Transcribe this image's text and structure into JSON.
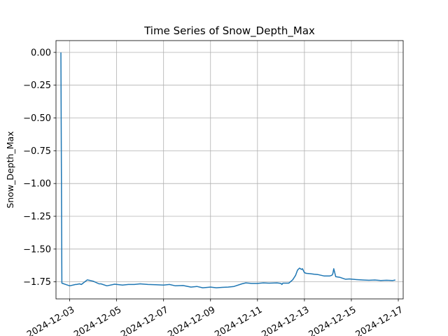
{
  "chart_data": {
    "type": "line",
    "title": "Time Series of Snow_Depth_Max",
    "xlabel": "",
    "ylabel": "Snow_Depth_Max",
    "grid": true,
    "legend": "none",
    "line_color": "#1f77b4",
    "xlim": [
      "2024-12-02T10:00",
      "2024-12-17T05:00"
    ],
    "ylim": [
      -1.88,
      0.09
    ],
    "x_ticks": [
      "2024-12-03",
      "2024-12-05",
      "2024-12-07",
      "2024-12-09",
      "2024-12-11",
      "2024-12-13",
      "2024-12-15",
      "2024-12-17"
    ],
    "y_ticks": [
      "0.00",
      "−0.25",
      "−0.50",
      "−0.75",
      "−1.00",
      "−1.25",
      "−1.50",
      "−1.75"
    ],
    "y_tick_values": [
      0,
      -0.25,
      -0.5,
      -0.75,
      -1.0,
      -1.25,
      -1.5,
      -1.75
    ],
    "series": [
      {
        "x": [
          "2024-12-02T15:00",
          "2024-12-02T16:00",
          "2024-12-02T20:00",
          "2024-12-03T00:00",
          "2024-12-03T06:00",
          "2024-12-03T07:00",
          "2024-12-03T10:00",
          "2024-12-03T12:00",
          "2024-12-03T18:00",
          "2024-12-04T00:00",
          "2024-12-04T06:00",
          "2024-12-04T08:00",
          "2024-12-04T14:00",
          "2024-12-04T22:00",
          "2024-12-05T06:00",
          "2024-12-05T12:00",
          "2024-12-05T18:00",
          "2024-12-06T00:00",
          "2024-12-06T08:00",
          "2024-12-06T16:00",
          "2024-12-07T00:00",
          "2024-12-07T06:00",
          "2024-12-07T12:00",
          "2024-12-07T20:00",
          "2024-12-08T04:00",
          "2024-12-08T10:00",
          "2024-12-08T16:00",
          "2024-12-09T00:00",
          "2024-12-09T06:00",
          "2024-12-09T12:00",
          "2024-12-09T18:00",
          "2024-12-10T00:00",
          "2024-12-10T08:00",
          "2024-12-10T12:00",
          "2024-12-10T18:00",
          "2024-12-11T00:00",
          "2024-12-11T06:00",
          "2024-12-11T12:00",
          "2024-12-11T20:00",
          "2024-12-12T00:00",
          "2024-12-12T01:00",
          "2024-12-12T02:00",
          "2024-12-12T08:00",
          "2024-12-12T12:00",
          "2024-12-12T15:00",
          "2024-12-12T17:00",
          "2024-12-12T19:00",
          "2024-12-12T21:00",
          "2024-12-12T22:00",
          "2024-12-13T00:00",
          "2024-12-13T02:00",
          "2024-12-13T06:00",
          "2024-12-13T10:00",
          "2024-12-13T14:00",
          "2024-12-13T20:00",
          "2024-12-14T02:00",
          "2024-12-14T04:00",
          "2024-12-14T05:00",
          "2024-12-14T06:00",
          "2024-12-14T07:00",
          "2024-12-14T08:00",
          "2024-12-14T12:00",
          "2024-12-14T18:00",
          "2024-12-14T22:00",
          "2024-12-15T04:00",
          "2024-12-15T12:00",
          "2024-12-15T18:00",
          "2024-12-16T00:00",
          "2024-12-16T06:00",
          "2024-12-16T12:00",
          "2024-12-16T18:00",
          "2024-12-16T21:00"
        ],
        "y": [
          0.0,
          -1.76,
          -1.77,
          -1.78,
          -1.77,
          -1.77,
          -1.765,
          -1.77,
          -1.735,
          -1.745,
          -1.765,
          -1.765,
          -1.78,
          -1.768,
          -1.775,
          -1.77,
          -1.77,
          -1.765,
          -1.77,
          -1.772,
          -1.775,
          -1.77,
          -1.78,
          -1.778,
          -1.79,
          -1.785,
          -1.795,
          -1.79,
          -1.795,
          -1.792,
          -1.79,
          -1.785,
          -1.765,
          -1.758,
          -1.762,
          -1.762,
          -1.758,
          -1.76,
          -1.758,
          -1.762,
          -1.77,
          -1.76,
          -1.76,
          -1.735,
          -1.7,
          -1.66,
          -1.645,
          -1.655,
          -1.65,
          -1.68,
          -1.685,
          -1.688,
          -1.692,
          -1.695,
          -1.705,
          -1.705,
          -1.7,
          -1.69,
          -1.65,
          -1.68,
          -1.71,
          -1.715,
          -1.73,
          -1.728,
          -1.732,
          -1.736,
          -1.738,
          -1.736,
          -1.74,
          -1.738,
          -1.74,
          -1.736
        ]
      }
    ]
  }
}
